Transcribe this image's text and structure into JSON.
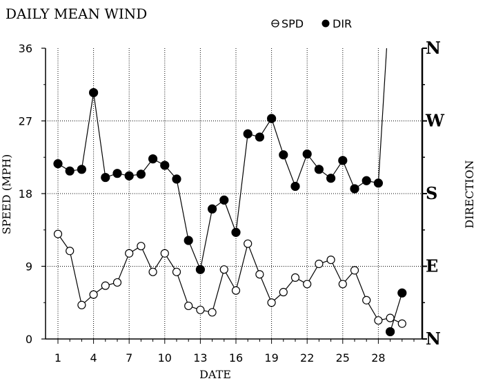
{
  "chart_data": {
    "type": "line",
    "title": "DAILY MEAN WIND",
    "xlabel": "DATE",
    "ylabel": "SPEED (MPH)",
    "y2label": "DIRECTION",
    "xlim": [
      0,
      31
    ],
    "ylim": [
      0,
      36
    ],
    "x_ticks": [
      1,
      4,
      7,
      10,
      13,
      16,
      19,
      22,
      25,
      28
    ],
    "y_ticks": [
      0,
      9,
      18,
      27,
      36
    ],
    "y2_ticks": [
      {
        "label": "N",
        "value": 0
      },
      {
        "label": "E",
        "value": 9
      },
      {
        "label": "S",
        "value": 18
      },
      {
        "label": "W",
        "value": 27
      },
      {
        "label": "N",
        "value": 36
      }
    ],
    "grid": true,
    "legend_position": "top-right",
    "series": [
      {
        "name": "SPD",
        "marker": "open-circle",
        "axis": "speed",
        "x": [
          1,
          2,
          3,
          4,
          5,
          6,
          7,
          8,
          9,
          10,
          11,
          12,
          13,
          14,
          15,
          16,
          17,
          18,
          19,
          20,
          21,
          22,
          23,
          24,
          25,
          26,
          27,
          28,
          29,
          30
        ],
        "values": [
          13.0,
          10.9,
          4.2,
          5.5,
          6.6,
          7.0,
          10.6,
          11.5,
          8.3,
          10.6,
          8.3,
          4.1,
          3.6,
          3.3,
          8.6,
          6.0,
          11.8,
          8.0,
          4.5,
          5.8,
          7.6,
          6.8,
          9.3,
          9.8,
          6.8,
          8.5,
          4.8,
          2.3,
          2.6,
          1.9
        ]
      },
      {
        "name": "DIR",
        "marker": "filled-circle",
        "axis": "direction",
        "x": [
          1,
          2,
          3,
          4,
          5,
          6,
          7,
          8,
          9,
          10,
          11,
          12,
          13,
          14,
          15,
          16,
          17,
          18,
          19,
          20,
          21,
          22,
          23,
          24,
          25,
          26,
          27,
          28,
          29,
          30
        ],
        "values": [
          21.7,
          20.8,
          21.0,
          30.5,
          20.0,
          20.5,
          20.2,
          20.4,
          22.3,
          21.5,
          19.8,
          12.2,
          8.6,
          16.1,
          17.2,
          13.2,
          25.4,
          25.0,
          27.3,
          22.8,
          18.9,
          22.9,
          21.0,
          19.9,
          22.1,
          18.6,
          19.6,
          19.3,
          0.9,
          5.7
        ]
      }
    ],
    "wrap_segment": {
      "from_x": 28,
      "from_y": 19.3,
      "to_x": 28.7,
      "to_y": 36
    }
  }
}
